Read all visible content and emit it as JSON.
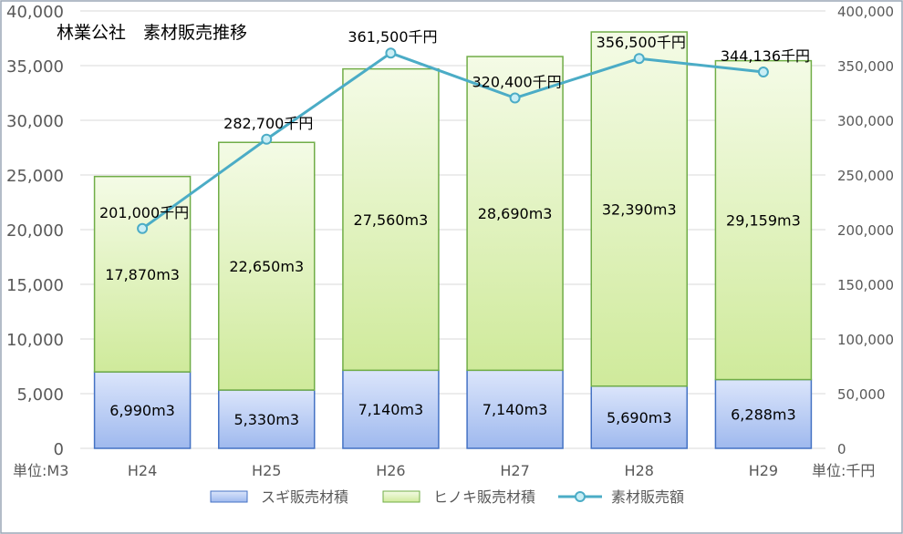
{
  "chart_data": {
    "type": "bar",
    "title": "林業公社　素材販売推移",
    "categories": [
      "H24",
      "H25",
      "H26",
      "H27",
      "H28",
      "H29"
    ],
    "y_left": {
      "min": 0,
      "max": 40000,
      "step": 5000,
      "unit_label": "単位:M3",
      "tick_labels": [
        "0",
        "5,000",
        "10,000",
        "15,000",
        "20,000",
        "25,000",
        "30,000",
        "35,000",
        "40,000"
      ]
    },
    "y_right": {
      "min": 0,
      "max": 400000,
      "step": 50000,
      "unit_label": "単位:千円",
      "tick_labels": [
        "0",
        "50,000",
        "100,000",
        "150,000",
        "200,000",
        "250,000",
        "300,000",
        "350,000",
        "400,000"
      ]
    },
    "grid": true,
    "legend_position": "bottom",
    "series": [
      {
        "name": "スギ販売材積",
        "type": "stacked-bar",
        "axis": "left",
        "values": [
          6990,
          5330,
          7140,
          7140,
          5690,
          6288
        ],
        "labels": [
          "6,990m3",
          "5,330m3",
          "7,140m3",
          "7,140m3",
          "5,690m3",
          "6,288m3"
        ],
        "color_top": "#dbe5fb",
        "color_bottom": "#9fb9ee",
        "stroke": "#4472c4"
      },
      {
        "name": "ヒノキ販売材積",
        "type": "stacked-bar",
        "axis": "left",
        "values": [
          17870,
          22650,
          27560,
          28690,
          32390,
          29159
        ],
        "labels": [
          "17,870m3",
          "22,650m3",
          "27,560m3",
          "28,690m3",
          "32,390m3",
          "29,159m3"
        ],
        "color_top": "#f4fbe6",
        "color_bottom": "#cfea9b",
        "stroke": "#70ad47"
      },
      {
        "name": "素材販売額",
        "type": "line",
        "axis": "right",
        "values": [
          201000,
          282700,
          361500,
          320400,
          356500,
          344136
        ],
        "labels": [
          "201,000千円",
          "282,700千円",
          "361,500千円",
          "320,400千円",
          "356,500千円",
          "344,136千円"
        ],
        "color": "#4bacc6",
        "marker_fill": "#c9eef5"
      }
    ]
  }
}
